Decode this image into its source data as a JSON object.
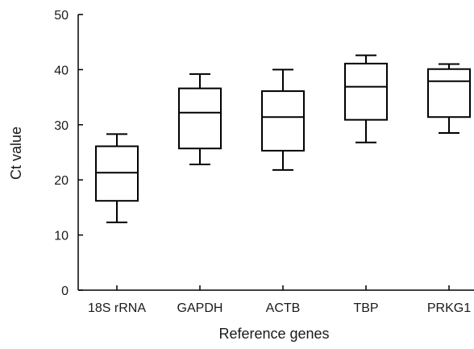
{
  "chart_data": {
    "type": "boxplot",
    "title": "",
    "xlabel": "Reference genes",
    "ylabel": "Ct value",
    "ylim": [
      0,
      50
    ],
    "yticks": [
      0,
      10,
      20,
      30,
      40,
      50
    ],
    "grid": false,
    "legend": "none",
    "categories": [
      "18S rRNA",
      "GAPDH",
      "ACTB",
      "TBP",
      "PRKG1"
    ],
    "boxes": [
      {
        "category": "18S rRNA",
        "min": 12.3,
        "q1": 16.2,
        "median": 21.3,
        "q3": 26.1,
        "max": 28.3
      },
      {
        "category": "GAPDH",
        "min": 22.8,
        "q1": 25.7,
        "median": 32.2,
        "q3": 36.6,
        "max": 39.2
      },
      {
        "category": "ACTB",
        "min": 21.8,
        "q1": 25.3,
        "median": 31.4,
        "q3": 36.1,
        "max": 40.0
      },
      {
        "category": "TBP",
        "min": 26.8,
        "q1": 30.9,
        "median": 36.9,
        "q3": 41.1,
        "max": 42.6
      },
      {
        "category": "PRKG1",
        "min": 28.5,
        "q1": 31.4,
        "median": 37.9,
        "q3": 40.1,
        "max": 41.0
      }
    ],
    "colors": {
      "stroke": "#000000",
      "fill": "#ffffff"
    }
  }
}
